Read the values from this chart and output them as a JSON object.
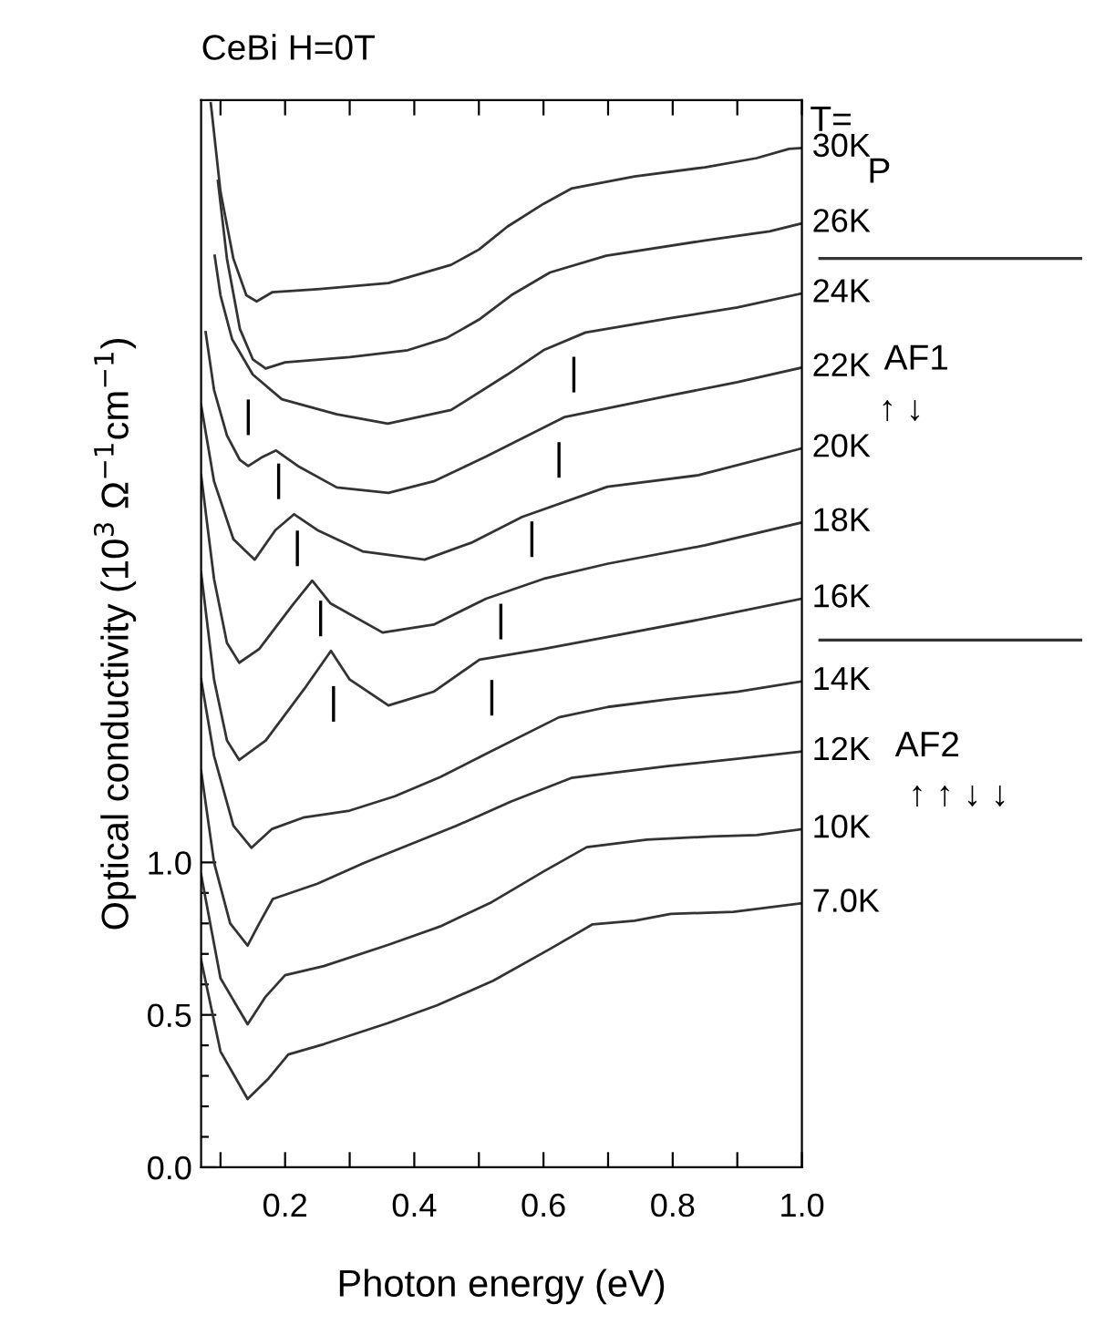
{
  "chart_data": {
    "type": "line",
    "title": "CeBi H=0T",
    "xlabel": "Photon energy (eV)",
    "ylabel": "Optical conductivity (10$^{3}$ Ω$^{−1}$cm$^{−1}$)",
    "xlim": [
      0.07,
      1.0
    ],
    "ylim": [
      0,
      3.5
    ],
    "xticks": [
      {
        "value": 0.1,
        "label": null
      },
      0.2,
      {
        "value": 0.3,
        "label": null
      },
      0.4,
      {
        "value": 0.5,
        "label": null
      },
      0.6,
      {
        "value": 0.7,
        "label": null
      },
      0.8,
      {
        "value": 0.9,
        "label": null
      },
      {
        "value": 1.0,
        "label": "1.0"
      }
    ],
    "yticks": [
      {
        "value": 0.0,
        "label": "0.0"
      },
      {
        "value": 0.1,
        "label": null
      },
      {
        "value": 0.2,
        "label": null
      },
      {
        "value": 0.3,
        "label": null
      },
      {
        "value": 0.4,
        "label": null
      },
      0.5,
      {
        "value": 0.6,
        "label": null
      },
      {
        "value": 0.7,
        "label": null
      },
      {
        "value": 0.8,
        "label": null
      },
      {
        "value": 0.9,
        "label": null
      },
      {
        "value": 1.0,
        "label": "1.0"
      }
    ],
    "line_style": "solid",
    "series": [
      {
        "name": "30K",
        "color": "#333333",
        "x": [
          0.085,
          0.1,
          0.12,
          0.14,
          0.156,
          0.18,
          0.25,
          0.36,
          0.457,
          0.5,
          0.544,
          0.6,
          0.643,
          0.741,
          0.85,
          0.93,
          0.98,
          1.0
        ],
        "values": [
          3.49,
          3.2,
          2.98,
          2.86,
          2.84,
          2.87,
          2.88,
          2.9,
          2.96,
          3.01,
          3.085,
          3.16,
          3.21,
          3.25,
          3.28,
          3.31,
          3.34,
          3.343
        ]
      },
      {
        "name": "26K",
        "color": "#333333",
        "x": [
          0.096,
          0.11,
          0.13,
          0.15,
          0.17,
          0.2,
          0.3,
          0.39,
          0.45,
          0.5,
          0.55,
          0.61,
          0.697,
          0.85,
          0.95,
          1.0
        ],
        "values": [
          3.235,
          2.98,
          2.75,
          2.65,
          2.62,
          2.64,
          2.657,
          2.68,
          2.72,
          2.78,
          2.86,
          2.935,
          2.99,
          3.04,
          3.07,
          3.096
        ]
      },
      {
        "name": "24K",
        "color": "#333333",
        "x": [
          0.091,
          0.1,
          0.118,
          0.15,
          0.195,
          0.28,
          0.359,
          0.457,
          0.544,
          0.6,
          0.665,
          0.796,
          0.9,
          1.0
        ],
        "values": [
          2.99,
          2.86,
          2.716,
          2.6,
          2.519,
          2.47,
          2.439,
          2.484,
          2.6,
          2.68,
          2.738,
          2.785,
          2.82,
          2.866
        ]
      },
      {
        "name": "22K",
        "color": "#333333",
        "x": [
          0.077,
          0.09,
          0.11,
          0.13,
          0.143,
          0.165,
          0.186,
          0.22,
          0.28,
          0.36,
          0.43,
          0.511,
          0.633,
          0.793,
          0.9,
          1.0
        ],
        "values": [
          2.739,
          2.55,
          2.4,
          2.32,
          2.3,
          2.33,
          2.351,
          2.3,
          2.23,
          2.212,
          2.25,
          2.331,
          2.461,
          2.53,
          2.575,
          2.623
        ]
      },
      {
        "name": "20K",
        "color": "#333333",
        "x": [
          0.07,
          0.09,
          0.12,
          0.153,
          0.185,
          0.214,
          0.25,
          0.32,
          0.416,
          0.49,
          0.567,
          0.699,
          0.84,
          1.0
        ],
        "values": [
          2.5,
          2.25,
          2.06,
          1.993,
          2.09,
          2.142,
          2.09,
          2.02,
          1.993,
          2.05,
          2.133,
          2.232,
          2.27,
          2.358
        ]
      },
      {
        "name": "18K",
        "color": "#333333",
        "x": [
          0.07,
          0.09,
          0.11,
          0.129,
          0.16,
          0.21,
          0.242,
          0.27,
          0.351,
          0.43,
          0.511,
          0.6,
          0.7,
          0.85,
          1.0
        ],
        "values": [
          2.27,
          1.93,
          1.72,
          1.655,
          1.7,
          1.84,
          1.924,
          1.85,
          1.754,
          1.78,
          1.865,
          1.93,
          1.98,
          2.04,
          2.115
        ]
      },
      {
        "name": "16K",
        "color": "#333333",
        "x": [
          0.07,
          0.09,
          0.11,
          0.129,
          0.17,
          0.23,
          0.271,
          0.3,
          0.36,
          0.43,
          0.501,
          0.6,
          0.7,
          0.85,
          1.0
        ],
        "values": [
          1.95,
          1.6,
          1.4,
          1.336,
          1.4,
          1.57,
          1.694,
          1.6,
          1.515,
          1.56,
          1.665,
          1.7,
          1.74,
          1.8,
          1.865
        ]
      },
      {
        "name": "14K",
        "color": "#333333",
        "x": [
          0.07,
          0.09,
          0.12,
          0.148,
          0.18,
          0.228,
          0.3,
          0.37,
          0.44,
          0.511,
          0.624,
          0.7,
          0.793,
          0.9,
          1.0
        ],
        "values": [
          1.6,
          1.35,
          1.12,
          1.048,
          1.11,
          1.147,
          1.17,
          1.217,
          1.28,
          1.356,
          1.476,
          1.51,
          1.535,
          1.56,
          1.594
        ]
      },
      {
        "name": "12K",
        "color": "#333333",
        "x": [
          0.07,
          0.09,
          0.115,
          0.142,
          0.16,
          0.181,
          0.25,
          0.322,
          0.464,
          0.55,
          0.643,
          0.793,
          0.9,
          1.0
        ],
        "values": [
          1.3,
          1.0,
          0.8,
          0.727,
          0.8,
          0.88,
          0.93,
          0.998,
          1.119,
          1.2,
          1.277,
          1.316,
          1.34,
          1.364
        ]
      },
      {
        "name": "10K",
        "color": "#333333",
        "x": [
          0.07,
          0.1,
          0.142,
          0.17,
          0.2,
          0.26,
          0.36,
          0.44,
          0.52,
          0.6,
          0.667,
          0.76,
          0.86,
          0.93,
          1.0
        ],
        "values": [
          0.96,
          0.62,
          0.469,
          0.56,
          0.63,
          0.66,
          0.73,
          0.79,
          0.87,
          0.97,
          1.05,
          1.075,
          1.085,
          1.09,
          1.109
        ]
      },
      {
        "name": "7.0K",
        "color": "#333333",
        "x": [
          0.07,
          0.1,
          0.142,
          0.173,
          0.205,
          0.26,
          0.359,
          0.435,
          0.522,
          0.61,
          0.676,
          0.741,
          0.797,
          0.894,
          1.0
        ],
        "values": [
          0.68,
          0.38,
          0.224,
          0.288,
          0.37,
          0.404,
          0.473,
          0.531,
          0.612,
          0.716,
          0.797,
          0.809,
          0.831,
          0.838,
          0.866
        ]
      }
    ],
    "annotations": [
      "T=",
      "P",
      "AF1",
      "↑ ↓",
      "AF2",
      "↑ ↑ ↓ ↓",
      "|",
      "|",
      "|",
      "|",
      "|",
      "|",
      "|",
      "|",
      "|",
      "|"
    ]
  }
}
